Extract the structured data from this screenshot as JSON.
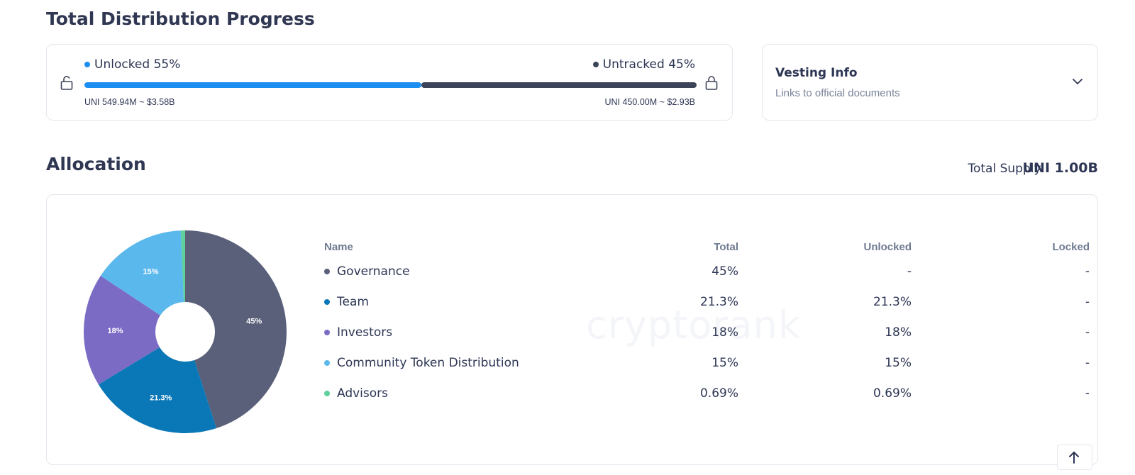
{
  "progress": {
    "title": "Total Distribution Progress",
    "unlocked_label": "Unlocked 55%",
    "unlocked_fraction": 0.55,
    "unlocked_amount": "UNI 549.94M ~ $3.58B",
    "untracked_label": "Untracked 45%",
    "untracked_fraction": 0.45,
    "untracked_amount": "UNI 450.00M ~ $2.93B",
    "colors": {
      "unlocked": "#1c8ef0",
      "untracked": "#3c4459"
    }
  },
  "vesting": {
    "title": "Vesting Info",
    "subtitle": "Links to official documents"
  },
  "allocation": {
    "title": "Allocation",
    "total_supply_label": "Total Supply:",
    "total_supply_value": "UNI 1.00B",
    "columns": [
      "Name",
      "Total",
      "Unlocked",
      "Locked"
    ],
    "rows": [
      {
        "name": "Governance",
        "total": "45%",
        "unlocked": "-",
        "locked": "-",
        "color": "#5a607a"
      },
      {
        "name": "Team",
        "total": "21.3%",
        "unlocked": "21.3%",
        "locked": "-",
        "color": "#0a78b6"
      },
      {
        "name": "Investors",
        "total": "18%",
        "unlocked": "18%",
        "locked": "-",
        "color": "#7b6bc4"
      },
      {
        "name": "Community Token Distribution",
        "total": "15%",
        "unlocked": "15%",
        "locked": "-",
        "color": "#5bb8ec"
      },
      {
        "name": "Advisors",
        "total": "0.69%",
        "unlocked": "0.69%",
        "locked": "-",
        "color": "#5fcf9c"
      }
    ],
    "watermark": "cryptorank"
  },
  "chart_data": {
    "type": "pie",
    "donut": true,
    "categories": [
      "Governance",
      "Team",
      "Investors",
      "Community Token Distribution",
      "Advisors"
    ],
    "values": [
      45,
      21.3,
      18,
      15,
      0.69
    ],
    "slice_labels": [
      "45%",
      "21.3%",
      "18%",
      "15%",
      ""
    ],
    "colors": [
      "#5a607a",
      "#0a78b6",
      "#7b6bc4",
      "#5bb8ec",
      "#5fcf9c"
    ]
  }
}
